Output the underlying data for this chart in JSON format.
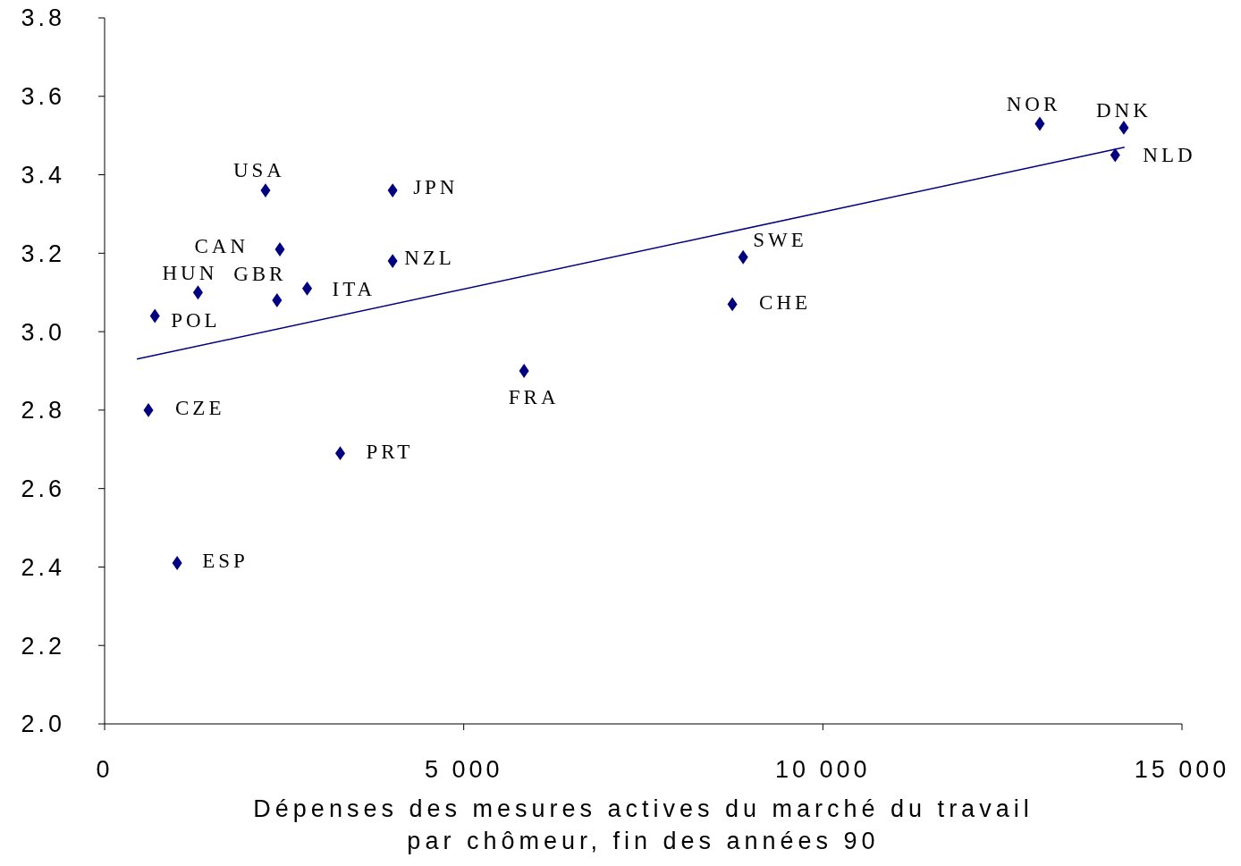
{
  "chart_data": {
    "type": "scatter",
    "xlabel": "Dépenses des mesures actives du marché du travail\npar chômeur, fin des années 90",
    "xlim": [
      0,
      15000
    ],
    "xticks": [
      0,
      {
        "value": 5000,
        "label": "5 000"
      },
      {
        "value": 10000,
        "label": "10 000"
      },
      {
        "value": 15000,
        "label": "15 000"
      }
    ],
    "ylim": [
      2.0,
      3.8
    ],
    "yticks": [
      {
        "value": 2.0,
        "label": "2.0"
      },
      2.2,
      2.4,
      2.6,
      2.8,
      {
        "value": 3.0,
        "label": "3.0"
      },
      3.2,
      3.4,
      3.6,
      3.8
    ],
    "grid": false,
    "marker": "diamond",
    "series": [
      {
        "color": "#000080",
        "x": [
          2240,
          4010,
          2440,
          4010,
          1300,
          2400,
          2820,
          700,
          610,
          1010,
          3280,
          5840,
          8890,
          8740,
          13020,
          14190,
          14070
        ],
        "values": [
          3.36,
          3.36,
          3.21,
          3.18,
          3.1,
          3.08,
          3.11,
          3.04,
          2.8,
          2.41,
          2.69,
          2.9,
          3.19,
          3.07,
          3.53,
          3.52,
          3.45
        ]
      },
      {
        "type": "line",
        "color": "#000080",
        "marker": "none",
        "x": [
          450,
          14200
        ],
        "values": [
          2.93,
          3.47
        ]
      }
    ],
    "annotations": [
      {
        "text": "USA",
        "x": 2240,
        "y": 3.36
      },
      {
        "text": "JPN",
        "x": 4010,
        "y": 3.36
      },
      {
        "text": "CAN",
        "x": 2440,
        "y": 3.21
      },
      {
        "text": "NZL",
        "x": 4010,
        "y": 3.18
      },
      {
        "text": "HUN",
        "x": 1300,
        "y": 3.1
      },
      {
        "text": "GBR",
        "x": 2400,
        "y": 3.08
      },
      {
        "text": "ITA",
        "x": 2820,
        "y": 3.11
      },
      {
        "text": "POL",
        "x": 700,
        "y": 3.04
      },
      {
        "text": "CZE",
        "x": 610,
        "y": 2.8
      },
      {
        "text": "ESP",
        "x": 1010,
        "y": 2.41
      },
      {
        "text": "PRT",
        "x": 3280,
        "y": 2.69
      },
      {
        "text": "FRA",
        "x": 5840,
        "y": 2.9
      },
      {
        "text": "SWE",
        "x": 8890,
        "y": 3.19
      },
      {
        "text": "CHE",
        "x": 8740,
        "y": 3.07
      },
      {
        "text": "NOR",
        "x": 13020,
        "y": 3.53
      },
      {
        "text": "DNK",
        "x": 14190,
        "y": 3.52
      },
      {
        "text": "NLD",
        "x": 14070,
        "y": 3.45
      }
    ]
  }
}
